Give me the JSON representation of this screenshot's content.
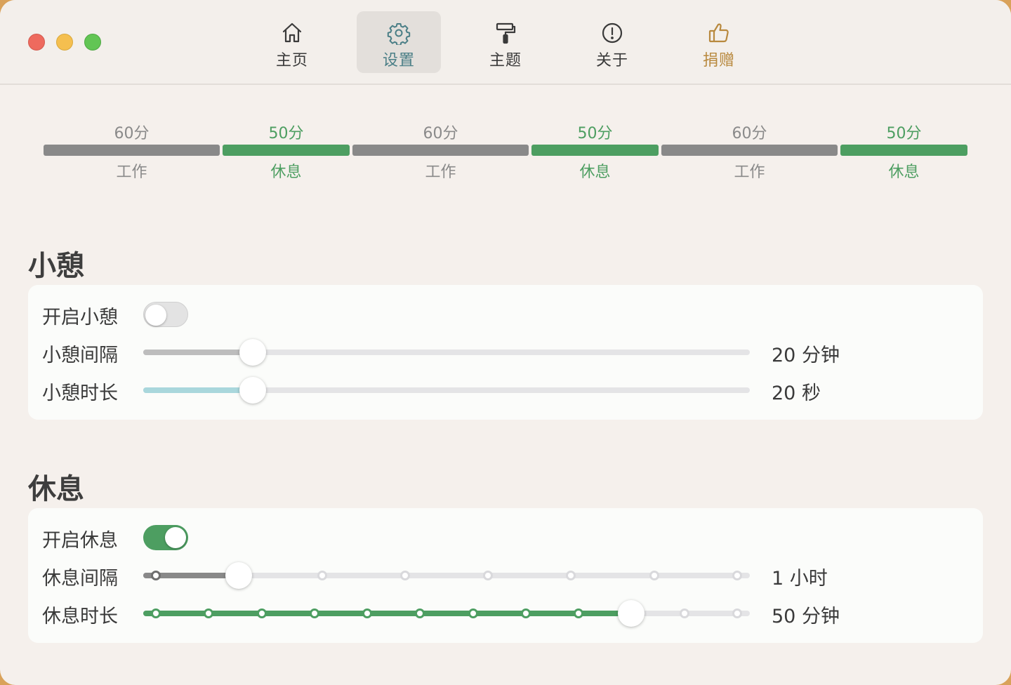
{
  "colors": {
    "accent_green": "#4d9e61",
    "work_gray": "#898989",
    "short_break_blue": "#a9d7dc",
    "donate_gold": "#b8893e",
    "active_tab_text": "#4a7e86"
  },
  "tabs": [
    {
      "label": "主页",
      "icon": "home-icon"
    },
    {
      "label": "设置",
      "icon": "gear-icon",
      "active": true
    },
    {
      "label": "主题",
      "icon": "paint-roller-icon"
    },
    {
      "label": "关于",
      "icon": "info-circle-icon"
    },
    {
      "label": "捐赠",
      "icon": "thumbs-up-icon"
    }
  ],
  "timeline": [
    {
      "duration": "60分",
      "kind": "工作"
    },
    {
      "duration": "50分",
      "kind": "休息"
    },
    {
      "duration": "60分",
      "kind": "工作"
    },
    {
      "duration": "50分",
      "kind": "休息"
    },
    {
      "duration": "60分",
      "kind": "工作"
    },
    {
      "duration": "50分",
      "kind": "休息"
    }
  ],
  "short_break": {
    "title": "小憩",
    "enable_label": "开启小憩",
    "enabled": false,
    "interval_label": "小憩间隔",
    "interval_value": "20 分钟",
    "interval_level": 0.18,
    "duration_label": "小憩时长",
    "duration_value": "20 秒",
    "duration_level": 0.18
  },
  "long_break": {
    "title": "休息",
    "enable_label": "开启休息",
    "enabled": true,
    "interval_label": "休息间隔",
    "interval_value": "1 小时",
    "interval_step": 1,
    "interval_steps": 8,
    "duration_label": "休息时长",
    "duration_value": "50 分钟",
    "duration_step": 9,
    "duration_steps": 12
  }
}
